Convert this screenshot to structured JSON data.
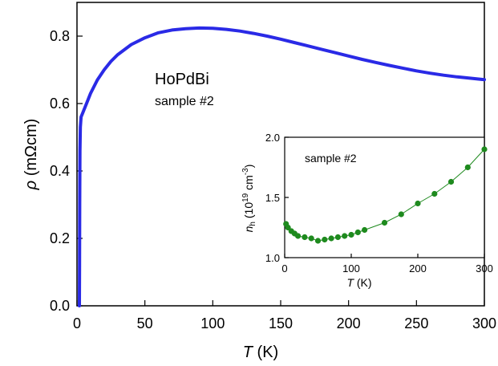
{
  "chart_data": [
    {
      "type": "line",
      "role": "main",
      "xlabel": "T (K)",
      "ylabel": "ρ (mΩcm)",
      "xlim": [
        0,
        300
      ],
      "ylim": [
        0,
        0.9
      ],
      "xticks": [
        0,
        50,
        100,
        150,
        200,
        250,
        300
      ],
      "yticks": [
        0.0,
        0.2,
        0.4,
        0.6,
        0.8
      ],
      "xtick_labels": [
        "0",
        "50",
        "100",
        "150",
        "200",
        "250",
        "300"
      ],
      "ytick_labels": [
        "0.0",
        "0.2",
        "0.4",
        "0.6",
        "0.8"
      ],
      "annotations": [
        "HoPdBi",
        "sample #2"
      ],
      "grid": false,
      "series": [
        {
          "color": "#2a2ae6",
          "x": [
            1.8,
            1.9,
            2.0,
            2.2,
            2.5,
            3,
            4,
            5,
            7,
            10,
            15,
            20,
            25,
            30,
            40,
            50,
            60,
            70,
            80,
            90,
            100,
            110,
            120,
            130,
            140,
            150,
            160,
            170,
            180,
            190,
            200,
            210,
            220,
            230,
            240,
            250,
            260,
            270,
            280,
            290,
            300
          ],
          "y": [
            0.0,
            0.12,
            0.3,
            0.46,
            0.53,
            0.56,
            0.57,
            0.58,
            0.6,
            0.63,
            0.67,
            0.7,
            0.725,
            0.745,
            0.775,
            0.795,
            0.81,
            0.818,
            0.822,
            0.824,
            0.823,
            0.82,
            0.815,
            0.808,
            0.8,
            0.791,
            0.781,
            0.771,
            0.761,
            0.751,
            0.741,
            0.731,
            0.722,
            0.713,
            0.705,
            0.697,
            0.69,
            0.684,
            0.679,
            0.675,
            0.671
          ]
        }
      ]
    },
    {
      "type": "scatter",
      "role": "inset",
      "xlabel": "T (K)",
      "ylabel": "n_h (10^19 cm^-3)",
      "xlim": [
        0,
        300
      ],
      "ylim": [
        1.0,
        2.0
      ],
      "xticks": [
        0,
        100,
        200,
        300
      ],
      "yticks": [
        1.0,
        1.5,
        2.0
      ],
      "xtick_labels": [
        "0",
        "100",
        "200",
        "300"
      ],
      "ytick_labels": [
        "1.0",
        "1.5",
        "2.0"
      ],
      "annotations": [
        "sample #2"
      ],
      "grid": false,
      "series": [
        {
          "color": "#1e8a1e",
          "x": [
            2,
            5,
            10,
            15,
            20,
            30,
            40,
            50,
            60,
            70,
            80,
            90,
            100,
            110,
            120,
            150,
            175,
            200,
            225,
            250,
            275,
            300
          ],
          "y": [
            1.28,
            1.25,
            1.22,
            1.2,
            1.18,
            1.17,
            1.16,
            1.14,
            1.15,
            1.16,
            1.17,
            1.18,
            1.19,
            1.21,
            1.23,
            1.29,
            1.36,
            1.45,
            1.53,
            1.63,
            1.75,
            1.9
          ]
        }
      ]
    }
  ]
}
